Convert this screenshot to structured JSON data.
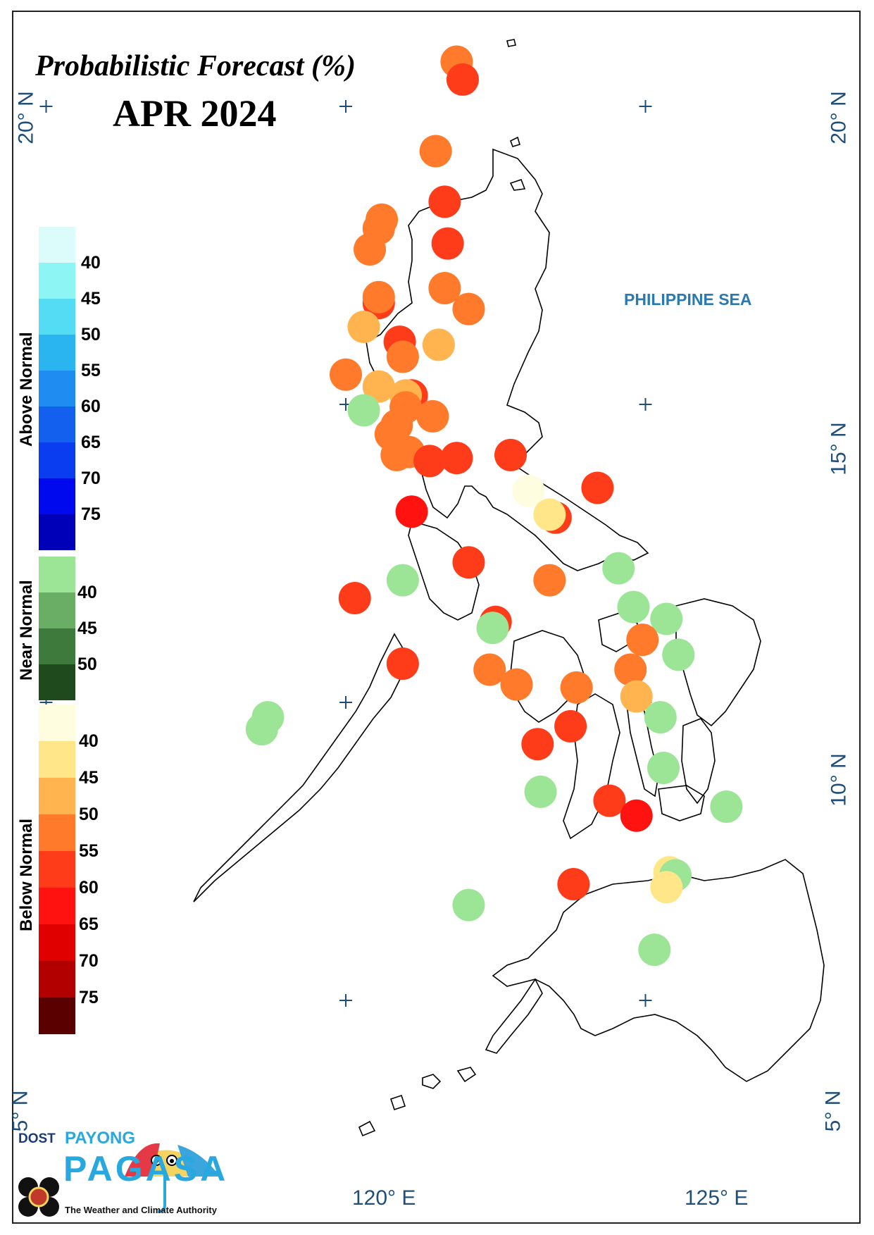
{
  "title": "Probabilistic Forecast (%)",
  "period": "APR 2024",
  "sea_label": "PHILIPPINE SEA",
  "lat_labels": [
    "20° N",
    "15° N",
    "10° N",
    "5° N"
  ],
  "lon_labels": [
    "120° E",
    "125° E"
  ],
  "legend": {
    "above_normal": {
      "label": "Above Normal",
      "ticks": [
        "40",
        "45",
        "50",
        "55",
        "60",
        "65",
        "70",
        "75"
      ],
      "colors": [
        "#dcfcfc",
        "#8ef5f5",
        "#55dcf5",
        "#2ab4f0",
        "#1e8cf0",
        "#1460ee",
        "#0a3cf0",
        "#0008ee",
        "#0000b8"
      ]
    },
    "near_normal": {
      "label": "Near Normal",
      "ticks": [
        "40",
        "45",
        "50"
      ],
      "colors": [
        "#9de596",
        "#6aae65",
        "#3f7a3d",
        "#1e4a1e"
      ]
    },
    "below_normal": {
      "label": "Below Normal",
      "ticks": [
        "40",
        "45",
        "50",
        "55",
        "60",
        "65",
        "70",
        "75"
      ],
      "colors": [
        "#fffde0",
        "#ffe688",
        "#ffb450",
        "#ff7a2a",
        "#ff3c1a",
        "#ff1210",
        "#e00000",
        "#b20000",
        "#5a0000"
      ]
    }
  },
  "station_colors": {
    "BN40": "#fffde0",
    "BN45": "#ffe688",
    "BN50": "#ffb450",
    "BN55": "#ff7a2a",
    "BN60": "#ff3c1a",
    "BN65": "#ff1210",
    "NN40": "#9de596"
  },
  "stations": [
    {
      "lat": 20.75,
      "lon": 121.85,
      "cat": "BN55"
    },
    {
      "lat": 20.45,
      "lon": 121.95,
      "cat": "BN60"
    },
    {
      "lat": 19.25,
      "lon": 121.5,
      "cat": "BN55"
    },
    {
      "lat": 18.4,
      "lon": 121.65,
      "cat": "BN60"
    },
    {
      "lat": 18.1,
      "lon": 120.6,
      "cat": "BN55"
    },
    {
      "lat": 17.95,
      "lon": 120.55,
      "cat": "BN55"
    },
    {
      "lat": 17.7,
      "lon": 121.7,
      "cat": "BN60"
    },
    {
      "lat": 17.6,
      "lon": 120.4,
      "cat": "BN55"
    },
    {
      "lat": 16.95,
      "lon": 121.65,
      "cat": "BN55"
    },
    {
      "lat": 16.7,
      "lon": 120.55,
      "cat": "BN60"
    },
    {
      "lat": 16.8,
      "lon": 120.55,
      "cat": "BN55"
    },
    {
      "lat": 16.6,
      "lon": 122.05,
      "cat": "BN55"
    },
    {
      "lat": 16.3,
      "lon": 120.3,
      "cat": "BN50"
    },
    {
      "lat": 16.05,
      "lon": 120.9,
      "cat": "BN60"
    },
    {
      "lat": 16.0,
      "lon": 121.55,
      "cat": "BN50"
    },
    {
      "lat": 15.8,
      "lon": 120.95,
      "cat": "BN55"
    },
    {
      "lat": 15.5,
      "lon": 120.0,
      "cat": "BN55"
    },
    {
      "lat": 15.3,
      "lon": 120.55,
      "cat": "BN50"
    },
    {
      "lat": 15.15,
      "lon": 121.1,
      "cat": "BN60"
    },
    {
      "lat": 15.15,
      "lon": 121.0,
      "cat": "BN50"
    },
    {
      "lat": 14.95,
      "lon": 121.0,
      "cat": "BN55"
    },
    {
      "lat": 14.9,
      "lon": 120.3,
      "cat": "NN40"
    },
    {
      "lat": 14.8,
      "lon": 121.45,
      "cat": "BN55"
    },
    {
      "lat": 14.65,
      "lon": 120.85,
      "cat": "BN55"
    },
    {
      "lat": 14.5,
      "lon": 120.75,
      "cat": "BN55"
    },
    {
      "lat": 14.2,
      "lon": 121.05,
      "cat": "BN55"
    },
    {
      "lat": 14.15,
      "lon": 120.85,
      "cat": "BN55"
    },
    {
      "lat": 14.05,
      "lon": 121.4,
      "cat": "BN60"
    },
    {
      "lat": 14.1,
      "lon": 121.85,
      "cat": "BN60"
    },
    {
      "lat": 14.15,
      "lon": 122.75,
      "cat": "BN60"
    },
    {
      "lat": 13.6,
      "lon": 124.2,
      "cat": "BN60"
    },
    {
      "lat": 13.55,
      "lon": 123.05,
      "cat": "BN40"
    },
    {
      "lat": 13.2,
      "lon": 121.1,
      "cat": "BN65"
    },
    {
      "lat": 13.1,
      "lon": 123.5,
      "cat": "BN60"
    },
    {
      "lat": 13.15,
      "lon": 123.4,
      "cat": "BN45"
    },
    {
      "lat": 12.35,
      "lon": 122.05,
      "cat": "BN60"
    },
    {
      "lat": 12.25,
      "lon": 124.55,
      "cat": "NN40"
    },
    {
      "lat": 12.05,
      "lon": 123.4,
      "cat": "BN55"
    },
    {
      "lat": 12.05,
      "lon": 120.95,
      "cat": "NN40"
    },
    {
      "lat": 11.75,
      "lon": 120.15,
      "cat": "BN60"
    },
    {
      "lat": 11.6,
      "lon": 124.8,
      "cat": "NN40"
    },
    {
      "lat": 11.4,
      "lon": 125.35,
      "cat": "NN40"
    },
    {
      "lat": 11.35,
      "lon": 122.5,
      "cat": "BN60"
    },
    {
      "lat": 11.25,
      "lon": 122.45,
      "cat": "NN40"
    },
    {
      "lat": 11.05,
      "lon": 124.95,
      "cat": "BN55"
    },
    {
      "lat": 10.8,
      "lon": 125.55,
      "cat": "NN40"
    },
    {
      "lat": 10.65,
      "lon": 120.95,
      "cat": "BN60"
    },
    {
      "lat": 10.55,
      "lon": 122.4,
      "cat": "BN55"
    },
    {
      "lat": 10.55,
      "lon": 124.75,
      "cat": "BN55"
    },
    {
      "lat": 10.3,
      "lon": 122.85,
      "cat": "BN55"
    },
    {
      "lat": 10.25,
      "lon": 123.85,
      "cat": "BN55"
    },
    {
      "lat": 10.1,
      "lon": 124.85,
      "cat": "BN50"
    },
    {
      "lat": 9.75,
      "lon": 118.7,
      "cat": "NN40"
    },
    {
      "lat": 9.75,
      "lon": 125.25,
      "cat": "NN40"
    },
    {
      "lat": 9.55,
      "lon": 118.6,
      "cat": "NN40"
    },
    {
      "lat": 9.6,
      "lon": 123.75,
      "cat": "BN60"
    },
    {
      "lat": 9.3,
      "lon": 123.2,
      "cat": "BN60"
    },
    {
      "lat": 8.9,
      "lon": 125.3,
      "cat": "NN40"
    },
    {
      "lat": 8.5,
      "lon": 123.25,
      "cat": "NN40"
    },
    {
      "lat": 8.35,
      "lon": 124.4,
      "cat": "BN60"
    },
    {
      "lat": 8.25,
      "lon": 126.35,
      "cat": "NN40"
    },
    {
      "lat": 8.1,
      "lon": 124.85,
      "cat": "BN65"
    },
    {
      "lat": 7.15,
      "lon": 125.4,
      "cat": "BN45"
    },
    {
      "lat": 7.1,
      "lon": 125.5,
      "cat": "NN40"
    },
    {
      "lat": 6.95,
      "lon": 123.8,
      "cat": "BN60"
    },
    {
      "lat": 6.9,
      "lon": 125.35,
      "cat": "BN45"
    },
    {
      "lat": 6.6,
      "lon": 122.05,
      "cat": "NN40"
    },
    {
      "lat": 5.85,
      "lon": 125.15,
      "cat": "NN40"
    }
  ]
}
